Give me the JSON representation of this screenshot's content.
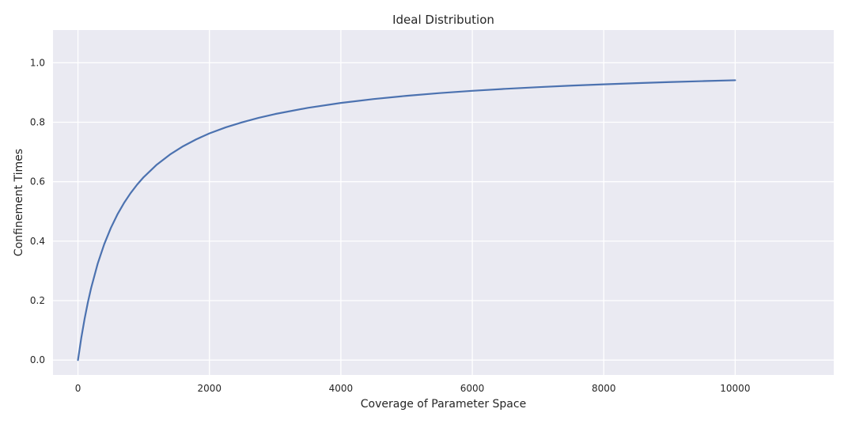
{
  "chart_data": {
    "type": "line",
    "title": "Ideal Distribution",
    "xlabel": "Coverage of Parameter Space",
    "ylabel": "Confinement Times",
    "xlim": [
      -380,
      11500
    ],
    "ylim": [
      -0.05,
      1.11
    ],
    "grid": true,
    "x_ticks": [
      0,
      2000,
      4000,
      6000,
      8000,
      10000
    ],
    "x_tick_labels": [
      "0",
      "2000",
      "4000",
      "6000",
      "8000",
      "10000"
    ],
    "y_ticks": [
      0.0,
      0.2,
      0.4,
      0.6,
      0.8,
      1.0
    ],
    "y_tick_labels": [
      "0.0",
      "0.2",
      "0.4",
      "0.6",
      "0.8",
      "1.0"
    ],
    "colors": {
      "line": "#4c72b0",
      "plot_background": "#eaeaf2",
      "grid": "#ffffff",
      "text": "#262626"
    },
    "series": [
      {
        "x": [
          0,
          50,
          100,
          150,
          200,
          300,
          400,
          500,
          600,
          700,
          800,
          900,
          1000,
          1200,
          1400,
          1600,
          1800,
          2000,
          2250,
          2500,
          2750,
          3000,
          3500,
          4000,
          4500,
          5000,
          5500,
          6000,
          6500,
          7000,
          7500,
          8000,
          8500,
          9000,
          9500,
          10000
        ],
        "y": [
          0.0,
          0.0741,
          0.1379,
          0.1935,
          0.2424,
          0.3243,
          0.3902,
          0.4444,
          0.4898,
          0.5283,
          0.5614,
          0.5902,
          0.6154,
          0.6575,
          0.6914,
          0.7193,
          0.7426,
          0.7625,
          0.783,
          0.8,
          0.8148,
          0.8276,
          0.8485,
          0.8649,
          0.878,
          0.8889,
          0.898,
          0.9057,
          0.9123,
          0.918,
          0.9231,
          0.9275,
          0.9315,
          0.9351,
          0.9383,
          0.9412
        ]
      }
    ]
  }
}
